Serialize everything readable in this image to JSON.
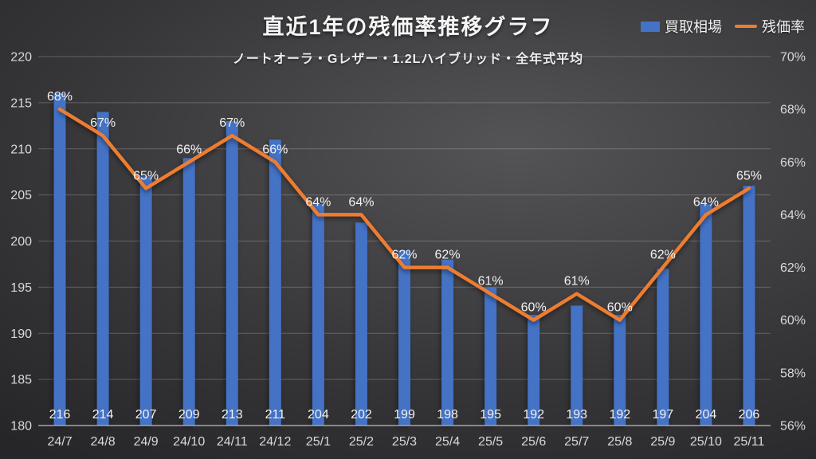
{
  "title": "直近1年の残価率推移グラフ",
  "subtitle": "ノートオーラ・Gレザー・1.2Lハイブリッド・全年式平均",
  "legend": {
    "items": [
      {
        "label": "買取相場",
        "swatch": "bar",
        "color": "#4472C4"
      },
      {
        "label": "残価率",
        "swatch": "line",
        "color": "#ED7D31"
      }
    ]
  },
  "colors": {
    "bar": "#4472C4",
    "line": "#ED7D31",
    "grid": "rgba(255,255,255,0.22)",
    "axis_line": "#a6a6a6",
    "tick_text": "#d9d9d9",
    "data_label_text": "#f2f2f2",
    "background": "#3a393c"
  },
  "chart_data": {
    "type": "combo",
    "title": "直近1年の残価率推移グラフ",
    "subtitle": "ノートオーラ・Gレザー・1.2Lハイブリッド・全年式平均",
    "grid": true,
    "legend_position": "top-right",
    "categories": [
      "24/7",
      "24/8",
      "24/9",
      "24/10",
      "24/11",
      "24/12",
      "25/1",
      "25/2",
      "25/3",
      "25/4",
      "25/5",
      "25/6",
      "25/7",
      "25/8",
      "25/9",
      "25/10",
      "25/11"
    ],
    "series": [
      {
        "name": "買取相場",
        "type": "bar",
        "axis": "left",
        "color": "#4472C4",
        "values": [
          216,
          214,
          207,
          209,
          213,
          211,
          204,
          202,
          199,
          198,
          195,
          192,
          193,
          192,
          197,
          204,
          206
        ],
        "data_labels": [
          "216",
          "214",
          "207",
          "209",
          "213",
          "211",
          "204",
          "202",
          "199",
          "198",
          "195",
          "192",
          "193",
          "192",
          "197",
          "204",
          "206"
        ]
      },
      {
        "name": "残価率",
        "type": "line",
        "axis": "right",
        "color": "#ED7D31",
        "values": [
          68,
          67,
          65,
          66,
          67,
          66,
          64,
          64,
          62,
          62,
          61,
          60,
          61,
          60,
          62,
          64,
          65
        ],
        "data_labels": [
          "68%",
          "67%",
          "65%",
          "66%",
          "67%",
          "66%",
          "64%",
          "64%",
          "62%",
          "62%",
          "61%",
          "60%",
          "61%",
          "60%",
          "62%",
          "64%",
          "65%"
        ]
      }
    ],
    "left_axis": {
      "min": 180,
      "max": 220,
      "step": 5,
      "ticks": [
        "220",
        "215",
        "210",
        "205",
        "200",
        "195",
        "190",
        "185",
        "180"
      ]
    },
    "right_axis": {
      "min": 56,
      "max": 70,
      "step": 2,
      "ticks": [
        "70%",
        "68%",
        "66%",
        "64%",
        "62%",
        "60%",
        "58%",
        "56%"
      ]
    }
  }
}
